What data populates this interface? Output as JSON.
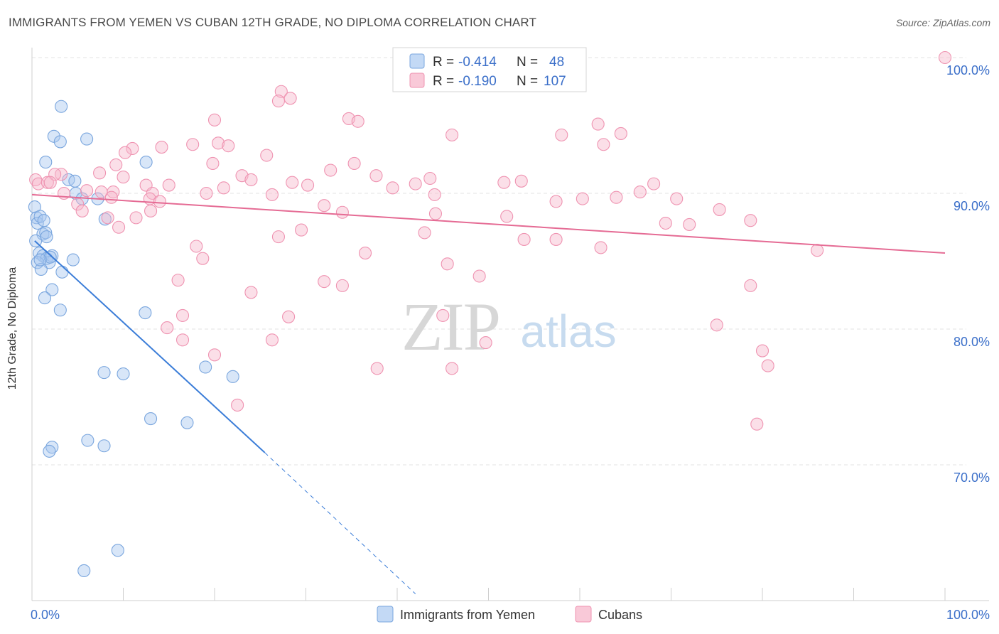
{
  "header": {
    "title": "IMMIGRANTS FROM YEMEN VS CUBAN 12TH GRADE, NO DIPLOMA CORRELATION CHART",
    "source": "Source: ZipAtlas.com"
  },
  "watermark": {
    "zip": "ZIP",
    "atlas": "atlas"
  },
  "stats": [
    {
      "r_label": "R =",
      "r_value": "-0.414",
      "n_label": "N =",
      "n_value": "48"
    },
    {
      "r_label": "R =",
      "r_value": "-0.190",
      "n_label": "N =",
      "n_value": "107"
    }
  ],
  "colors": {
    "yemen_fill": "#a8c8f0",
    "yemen_stroke": "#7aa6de",
    "yemen_line": "#3b7dd8",
    "cuba_fill": "#f7b8cc",
    "cuba_stroke": "#ef93b1",
    "cuba_line": "#e56b94",
    "value_text": "#3b6fc9",
    "grid": "#e3e3e3"
  },
  "chart_data": {
    "type": "scatter",
    "title": "IMMIGRANTS FROM YEMEN VS CUBAN 12TH GRADE, NO DIPLOMA CORRELATION CHART",
    "xlabel": "",
    "ylabel": "12th Grade, No Diploma",
    "xlim": [
      0,
      100
    ],
    "ylim": [
      60,
      103
    ],
    "x_tick_labels": [
      "0.0%",
      "100.0%"
    ],
    "y_ticks": [
      70,
      80,
      90,
      100
    ],
    "y_tick_labels": [
      "70.0%",
      "80.0%",
      "90.0%",
      "100.0%"
    ],
    "grid": true,
    "legend_position": "bottom-center",
    "series": [
      {
        "name": "Immigrants from Yemen",
        "trend": {
          "x": [
            0.3,
            25.5
          ],
          "y": [
            86.5,
            70.9
          ],
          "extended_to": [
            42,
            60.5
          ]
        },
        "points": [
          [
            0.3,
            89
          ],
          [
            0.5,
            88.2
          ],
          [
            0.6,
            87.8
          ],
          [
            0.9,
            88.3
          ],
          [
            1.2,
            87
          ],
          [
            0.4,
            86.5
          ],
          [
            0.8,
            85.6
          ],
          [
            1.5,
            87.1
          ],
          [
            1.6,
            86.8
          ],
          [
            1.2,
            85.4
          ],
          [
            1.6,
            85.2
          ],
          [
            2.2,
            85.4
          ],
          [
            0.6,
            84.9
          ],
          [
            1.9,
            84.9
          ],
          [
            1.0,
            84.4
          ],
          [
            3.3,
            84.2
          ],
          [
            2.2,
            82.9
          ],
          [
            1.4,
            82.3
          ],
          [
            3.1,
            81.4
          ],
          [
            4.5,
            85.1
          ],
          [
            1.5,
            92.3
          ],
          [
            2.4,
            94.2
          ],
          [
            3.1,
            93.8
          ],
          [
            3.2,
            96.4
          ],
          [
            4.0,
            91.0
          ],
          [
            4.7,
            90.9
          ],
          [
            4.8,
            90.0
          ],
          [
            5.5,
            89.6
          ],
          [
            6.0,
            94.0
          ],
          [
            7.2,
            89.6
          ],
          [
            8.0,
            88.1
          ],
          [
            12.5,
            92.3
          ],
          [
            12.4,
            81.2
          ],
          [
            7.9,
            76.8
          ],
          [
            10.0,
            76.7
          ],
          [
            19.0,
            77.2
          ],
          [
            22.0,
            76.5
          ],
          [
            13.0,
            73.4
          ],
          [
            17.0,
            73.1
          ],
          [
            6.1,
            71.8
          ],
          [
            7.9,
            71.4
          ],
          [
            2.2,
            71.3
          ],
          [
            1.9,
            71.0
          ],
          [
            9.4,
            63.7
          ],
          [
            5.7,
            62.2
          ],
          [
            2.0,
            85.3
          ],
          [
            0.9,
            85.1
          ],
          [
            1.3,
            88.0
          ]
        ]
      },
      {
        "name": "Cubans",
        "trend": {
          "x": [
            0,
            100
          ],
          "y": [
            89.9,
            85.6
          ]
        },
        "points": [
          [
            100,
            100
          ],
          [
            27.3,
            97.5
          ],
          [
            27.0,
            96.8
          ],
          [
            28.3,
            97.0
          ],
          [
            34.7,
            95.5
          ],
          [
            35.7,
            95.3
          ],
          [
            20.0,
            95.4
          ],
          [
            62.0,
            95.1
          ],
          [
            58.0,
            94.3
          ],
          [
            64.5,
            94.4
          ],
          [
            46.0,
            94.3
          ],
          [
            62.6,
            93.6
          ],
          [
            20.4,
            93.7
          ],
          [
            17.6,
            93.6
          ],
          [
            21.5,
            93.5
          ],
          [
            14.2,
            93.4
          ],
          [
            11.0,
            93.3
          ],
          [
            10.2,
            93.0
          ],
          [
            25.7,
            92.8
          ],
          [
            35.3,
            92.2
          ],
          [
            9.2,
            92.1
          ],
          [
            32.7,
            91.7
          ],
          [
            23.0,
            91.3
          ],
          [
            37.7,
            91.3
          ],
          [
            43.6,
            91.1
          ],
          [
            24.0,
            91.0
          ],
          [
            10.0,
            91.2
          ],
          [
            7.4,
            91.5
          ],
          [
            3.2,
            91.4
          ],
          [
            2.5,
            91.4
          ],
          [
            0.4,
            91.0
          ],
          [
            0.7,
            90.7
          ],
          [
            1.7,
            90.8
          ],
          [
            2.0,
            90.8
          ],
          [
            6.0,
            90.2
          ],
          [
            7.6,
            90.1
          ],
          [
            8.9,
            90.1
          ],
          [
            15.0,
            90.6
          ],
          [
            12.5,
            90.6
          ],
          [
            21.0,
            90.4
          ],
          [
            28.5,
            90.8
          ],
          [
            30.2,
            90.6
          ],
          [
            39.5,
            90.4
          ],
          [
            42.0,
            90.7
          ],
          [
            44.1,
            89.9
          ],
          [
            51.7,
            90.8
          ],
          [
            53.6,
            90.9
          ],
          [
            57.4,
            89.4
          ],
          [
            60.3,
            89.6
          ],
          [
            64.0,
            89.7
          ],
          [
            68.1,
            90.7
          ],
          [
            66.6,
            90.1
          ],
          [
            70.6,
            89.6
          ],
          [
            26.3,
            89.9
          ],
          [
            19.1,
            90.0
          ],
          [
            13.2,
            90.0
          ],
          [
            12.9,
            89.6
          ],
          [
            14.0,
            89.4
          ],
          [
            5.0,
            89.2
          ],
          [
            8.7,
            89.7
          ],
          [
            32.0,
            89.1
          ],
          [
            34.0,
            88.6
          ],
          [
            44.2,
            88.5
          ],
          [
            13.0,
            88.7
          ],
          [
            11.4,
            88.2
          ],
          [
            8.3,
            88.2
          ],
          [
            52.0,
            88.3
          ],
          [
            78.7,
            88.0
          ],
          [
            75.3,
            88.8
          ],
          [
            69.4,
            87.8
          ],
          [
            72.0,
            87.7
          ],
          [
            29.5,
            87.3
          ],
          [
            27.0,
            86.8
          ],
          [
            43.0,
            87.1
          ],
          [
            57.4,
            86.6
          ],
          [
            53.9,
            86.6
          ],
          [
            62.3,
            86.0
          ],
          [
            18.0,
            86.1
          ],
          [
            18.7,
            85.2
          ],
          [
            36.5,
            85.6
          ],
          [
            45.5,
            84.8
          ],
          [
            49.0,
            83.9
          ],
          [
            16.0,
            83.6
          ],
          [
            32.0,
            83.5
          ],
          [
            34.0,
            83.2
          ],
          [
            78.7,
            83.2
          ],
          [
            24.0,
            82.7
          ],
          [
            45.0,
            81.0
          ],
          [
            16.5,
            81.0
          ],
          [
            28.1,
            80.9
          ],
          [
            14.8,
            80.1
          ],
          [
            75.0,
            80.3
          ],
          [
            16.5,
            79.2
          ],
          [
            26.3,
            79.2
          ],
          [
            49.7,
            79.0
          ],
          [
            20.0,
            78.1
          ],
          [
            80.0,
            78.4
          ],
          [
            22.5,
            74.4
          ],
          [
            37.8,
            77.1
          ],
          [
            46.0,
            77.1
          ],
          [
            80.6,
            77.3
          ],
          [
            79.4,
            73.0
          ],
          [
            9.5,
            87.5
          ],
          [
            3.5,
            90.0
          ],
          [
            5.5,
            88.7
          ],
          [
            19.8,
            92.2
          ],
          [
            86.0,
            85.8
          ]
        ]
      }
    ]
  },
  "legend": {
    "items": [
      "Immigrants from Yemen",
      "Cubans"
    ]
  }
}
